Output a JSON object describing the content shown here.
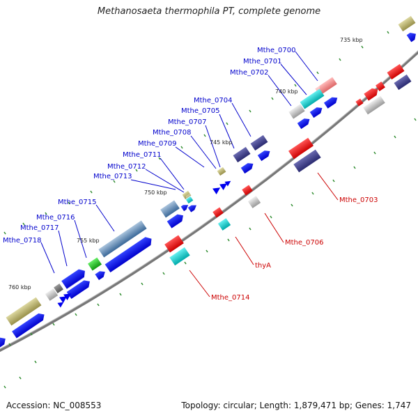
{
  "title": "Methanosaeta thermophila PT, complete genome",
  "accession": "Accession: NC_008553",
  "summary": "Topology: circular; Length: 1,879,471 bp; Genes: 1,747",
  "ticks": [
    "735 kbp",
    "740 kbp",
    "745 kbp",
    "750 kbp",
    "755 kbp",
    "760 kbp"
  ],
  "forward_labels": [
    "Mthe_0700",
    "Mthe_0701",
    "Mthe_0702",
    "Mthe_0704",
    "Mthe_0705",
    "Mthe_0707",
    "Mthe_0708",
    "Mthe_0709",
    "Mthe_0711",
    "Mthe_0712",
    "Mthe_0713",
    "Mthe_0715",
    "Mthe_0716",
    "Mthe_0717",
    "Mthe_0718"
  ],
  "reverse_labels": [
    "Mthe_0703",
    "Mthe_0706",
    "thyA",
    "Mthe_0714"
  ],
  "colors": {
    "forward_label": "#0000cc",
    "reverse_label": "#cc0000",
    "backbone": "#888888",
    "tick_mark": "#2e8b2e",
    "cds": "#0000ee",
    "red_feature": "#ee0000",
    "navy_feature": "#3a3a8a",
    "cyan_feature": "#00cccc",
    "grey_feature": "#b0b0b0",
    "olive_feature": "#b8b070",
    "steel_feature": "#4a78a8",
    "green_feature": "#22bb22",
    "pink_feature": "#ee8888"
  }
}
